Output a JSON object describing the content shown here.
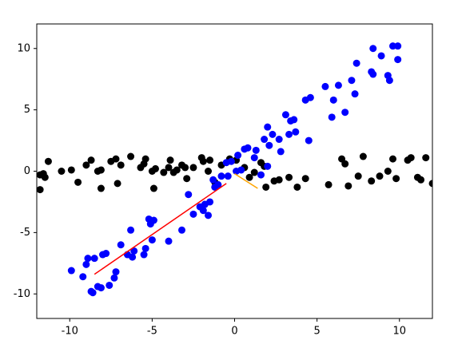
{
  "chart_data": {
    "type": "scatter",
    "xlim": [
      -12,
      12
    ],
    "ylim": [
      -12,
      12
    ],
    "xticks": [
      -10,
      -5,
      0,
      5,
      10
    ],
    "yticks": [
      -10,
      -5,
      0,
      5,
      10
    ],
    "series": [
      {
        "color": "#000000",
        "style": "marker",
        "x": [
          -11.8,
          -11.6,
          -11.5,
          -11.3,
          -11.8,
          -10.5,
          -9.9,
          -9.5,
          -9,
          -8.7,
          -8.3,
          -8.1,
          -8.1,
          -7.5,
          -7.2,
          -7.1,
          -6.9,
          -6.3,
          -5.7,
          -5.5,
          -5.4,
          -5,
          -4.9,
          -4.8,
          -4.3,
          -4,
          -3.9,
          -3.7,
          -3.5,
          -3.2,
          -3,
          -2.9,
          -2.5,
          -1.9,
          -1.6,
          -1.5,
          -1.2,
          -0.8,
          -0.3,
          0.1,
          0.6,
          1.2,
          1.6,
          1.8,
          2.4,
          2.7,
          3.3,
          3.8,
          4.3,
          5.7,
          6.5,
          6.7,
          6.9,
          7.5,
          7.8,
          8.3,
          8.8,
          9.3,
          9.6,
          9.8,
          10.5,
          10.7,
          11.1,
          11.3,
          11.6,
          12,
          -2,
          0.9,
          1.9
        ],
        "values": [
          -0.3,
          -0.2,
          -0.5,
          0.8,
          -1.5,
          0,
          0.1,
          -0.9,
          0.5,
          0.9,
          0,
          0.1,
          -1.4,
          0.8,
          1,
          -1,
          0.5,
          1.2,
          0.3,
          0.6,
          1,
          0,
          -1.4,
          0.2,
          -0.1,
          0.3,
          0.9,
          -0.1,
          0.1,
          0.5,
          0.3,
          -0.6,
          0.3,
          0.8,
          0,
          0.9,
          -0.9,
          0.5,
          1,
          0.9,
          0.3,
          -0.1,
          0.7,
          0.4,
          -0.8,
          -0.7,
          -0.5,
          -1.3,
          -0.6,
          -1.1,
          1,
          0.6,
          -1.2,
          -0.4,
          1.2,
          -0.8,
          -0.4,
          0,
          1,
          -0.6,
          0.9,
          1.1,
          -0.5,
          -0.7,
          1.1,
          -1,
          1.1,
          -0.5,
          -1.3
        ]
      },
      {
        "color": "#0000ff",
        "style": "marker",
        "x": [
          -9.9,
          -9.2,
          -9,
          -8.9,
          -8.7,
          -8.6,
          -8.5,
          -8.3,
          -8.1,
          -8,
          -7.8,
          -7.6,
          -7.3,
          -7.2,
          -6.9,
          -6.5,
          -6.3,
          -6.2,
          -6.1,
          -5.5,
          -5.4,
          -5.2,
          -5.1,
          -5,
          -4.9,
          -4,
          -3.2,
          -2.8,
          -2.5,
          -2.1,
          -1.9,
          -1.8,
          -1.6,
          -1.5,
          -1.3,
          -1.2,
          -1,
          -0.8,
          -0.5,
          -0.4,
          -0.2,
          0.1,
          0.2,
          0.4,
          0.6,
          0.8,
          1.2,
          1.3,
          1.6,
          1.8,
          2,
          2,
          2.1,
          2.3,
          2.7,
          2.8,
          3.1,
          3.3,
          3.4,
          3.6,
          3.7,
          4.3,
          4.5,
          4.6,
          5.5,
          5.9,
          6,
          6.3,
          6.7,
          7.1,
          7.3,
          7.4,
          8.3,
          8.4,
          8.4,
          8.9,
          9.3,
          9.4,
          9.6,
          9.9,
          9.9
        ],
        "values": [
          -8.1,
          -8.6,
          -7.6,
          -7.1,
          -9.8,
          -9.9,
          -7.1,
          -9.4,
          -9.5,
          -6.8,
          -6.7,
          -9.3,
          -8.7,
          -8.2,
          -6,
          -6.8,
          -4.8,
          -7,
          -6.5,
          -6.8,
          -6.3,
          -3.9,
          -4.3,
          -5.6,
          -4,
          -5.7,
          -4.8,
          -1.9,
          -3.5,
          -2.9,
          -3.2,
          -2.7,
          -3.6,
          -2.5,
          -0.7,
          -1.3,
          -1.1,
          -0.4,
          0.7,
          -0.4,
          0.8,
          0,
          1.3,
          0.1,
          1.8,
          1.9,
          1.1,
          1.7,
          -0.3,
          2.6,
          3.6,
          0.4,
          2.1,
          3,
          2.6,
          1.6,
          4.6,
          3,
          4.1,
          4.2,
          3.2,
          5.8,
          2.5,
          6,
          6.9,
          4.4,
          5.8,
          7,
          4.8,
          7.4,
          6.3,
          8.8,
          8.1,
          7.9,
          10,
          9.4,
          7.8,
          7.4,
          10.2,
          10.2,
          9.1
        ]
      },
      {
        "color": "#ff0000",
        "style": "line",
        "x": [
          -8.5,
          -0.5
        ],
        "values": [
          -8.4,
          -1.0
        ]
      },
      {
        "color": "#ffa500",
        "style": "line",
        "x": [
          0,
          1.4
        ],
        "values": [
          -0.2,
          -1.4
        ]
      }
    ]
  }
}
